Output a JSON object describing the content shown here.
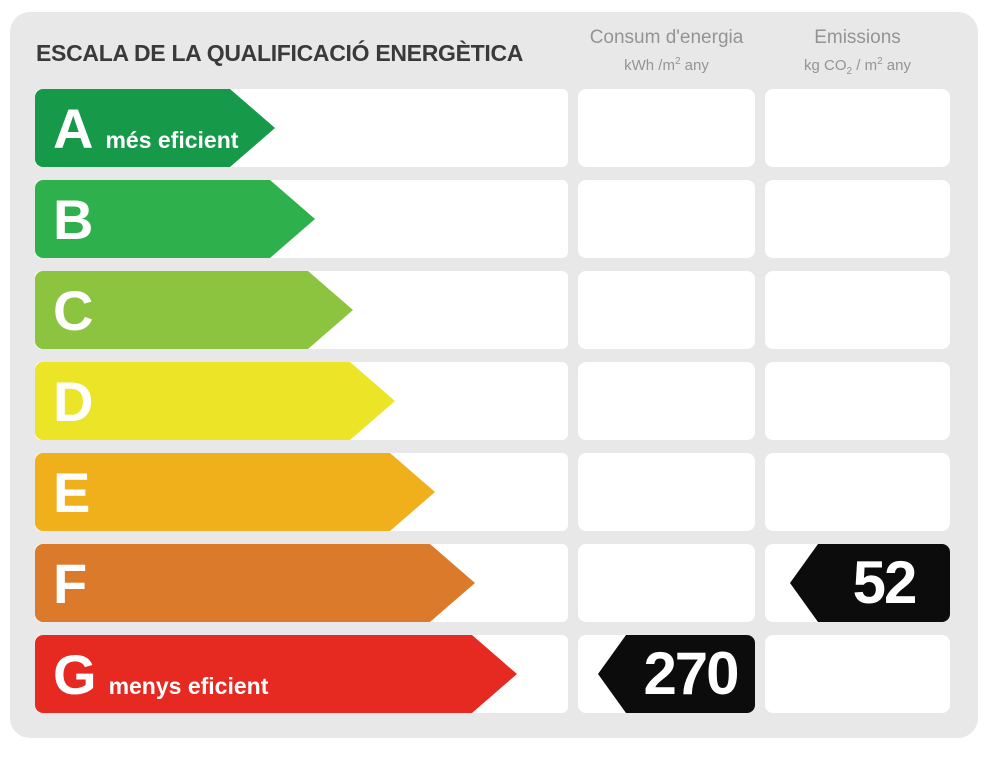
{
  "title": "ESCALA DE LA QUALIFICACIÓ ENERGÈTICA",
  "columns": {
    "consum": {
      "title": "Consum d'energia",
      "unit": {
        "pre": "kWh /m",
        "sup": "2",
        "post": " any"
      }
    },
    "emissions": {
      "title": "Emissions",
      "unit": {
        "pre": "kg CO",
        "sub": "2",
        "mid": " / m",
        "sup": "2",
        "post": " any"
      }
    }
  },
  "scale": [
    {
      "letter": "A",
      "label": "més eficient",
      "color": "#17994a"
    },
    {
      "letter": "B",
      "label": "",
      "color": "#2eb14d"
    },
    {
      "letter": "C",
      "label": "",
      "color": "#8dc43f"
    },
    {
      "letter": "D",
      "label": "",
      "color": "#ece426"
    },
    {
      "letter": "E",
      "label": "",
      "color": "#efb01b"
    },
    {
      "letter": "F",
      "label": "",
      "color": "#dc7a2c"
    },
    {
      "letter": "G",
      "label": "menys eficient",
      "color": "#e62921"
    }
  ],
  "values": {
    "consum_value": "270",
    "consum_rating_row": "G",
    "emissions_value": "52",
    "emissions_rating_row": "F"
  },
  "colors": {
    "badge": "#0c0c0c",
    "panel_bg": "#e8e8e8",
    "header_text": "#949494",
    "title_text": "#3a3a3a"
  },
  "chart_data": {
    "type": "bar",
    "title": "ESCALA DE LA QUALIFICACIÓ ENERGÈTICA",
    "categories": [
      "A",
      "B",
      "C",
      "D",
      "E",
      "F",
      "G"
    ],
    "category_labels": {
      "A": "més eficient",
      "G": "menys eficient"
    },
    "bar_colors": [
      "#17994a",
      "#2eb14d",
      "#8dc43f",
      "#ece426",
      "#efb01b",
      "#dc7a2c",
      "#e62921"
    ],
    "bar_lengths_relative": [
      1.0,
      1.17,
      1.33,
      1.5,
      1.67,
      1.83,
      2.0
    ],
    "series": [
      {
        "name": "Consum d'energia (kWh/m2 any)",
        "rating": "G",
        "value": 270
      },
      {
        "name": "Emissions (kg CO2/m2 any)",
        "rating": "F",
        "value": 52
      }
    ],
    "legend_position": "none",
    "grid": false
  }
}
